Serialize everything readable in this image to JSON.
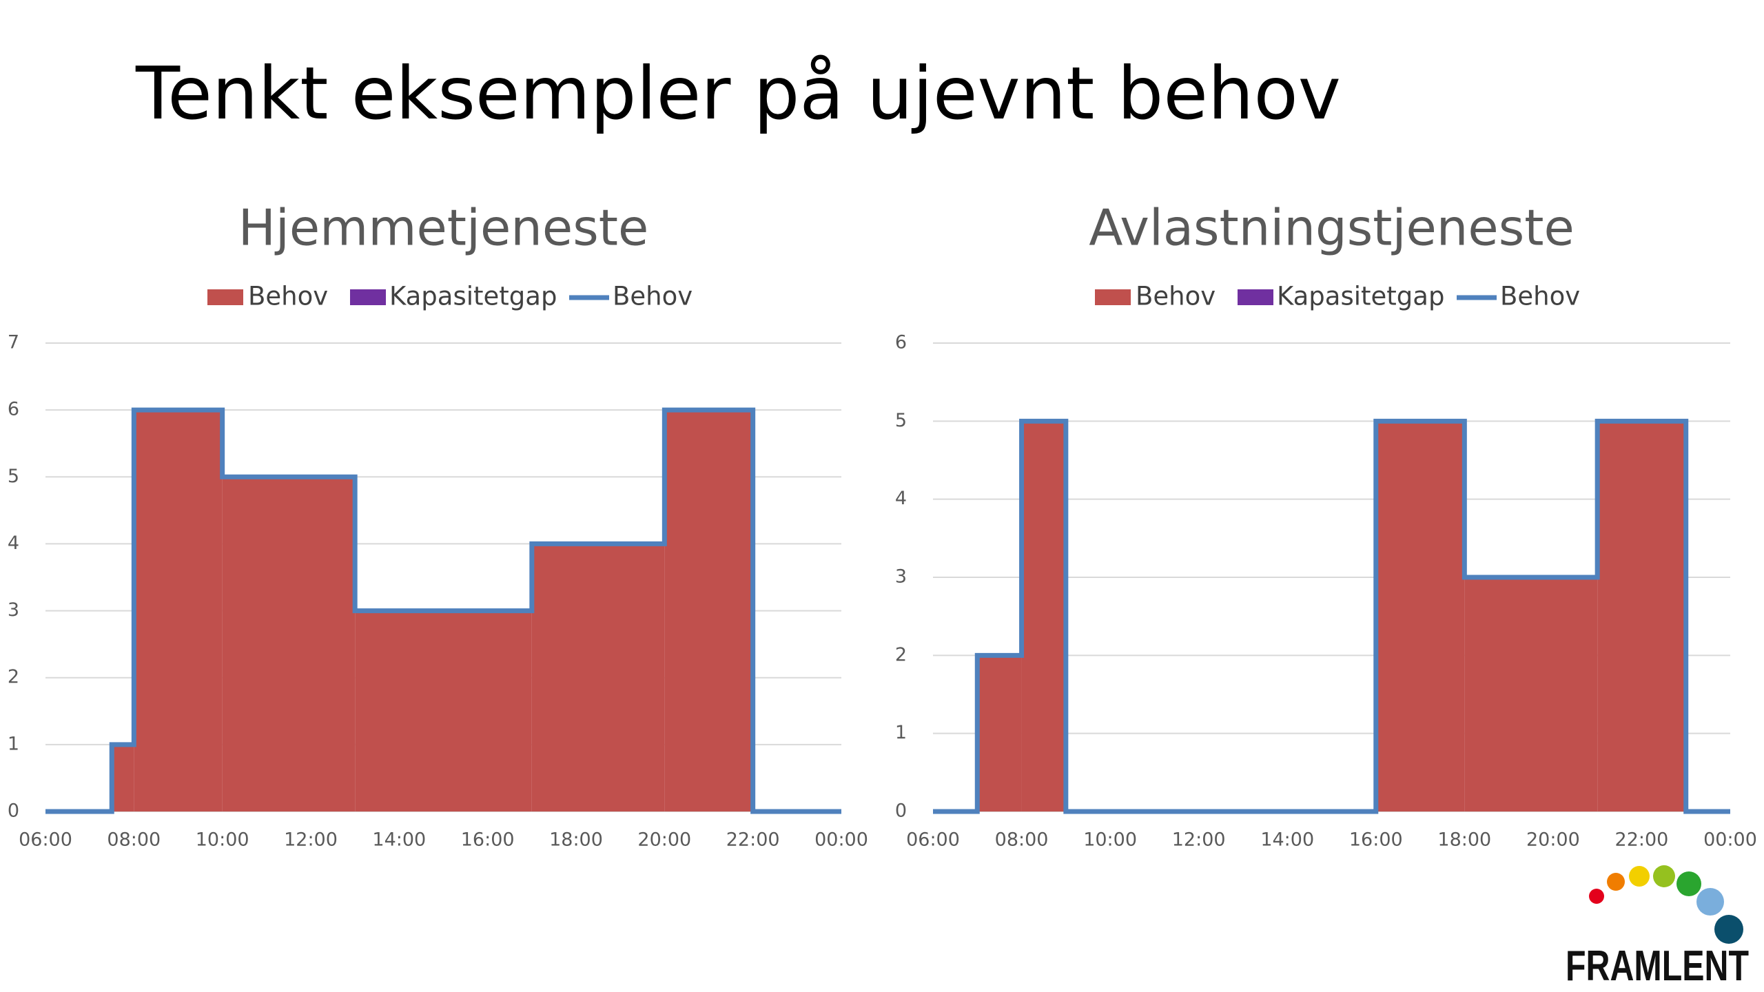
{
  "title": "Tenkt eksempler på ujevnt behov",
  "logo": "FRAMLENT",
  "chart_data": [
    {
      "type": "step-area",
      "title": "Hjemmetjeneste",
      "x": [
        6,
        7.5,
        8,
        10,
        13,
        17,
        20,
        22,
        24
      ],
      "series": [
        {
          "name": "Behov",
          "kind": "area",
          "color": "#c0504d",
          "values": [
            0,
            1,
            6,
            5,
            3,
            4,
            6,
            0,
            0
          ]
        },
        {
          "name": "Kapasitetgap",
          "kind": "area",
          "color": "#7030a0",
          "values": [
            0,
            0,
            0,
            0,
            0,
            0,
            0,
            0,
            0
          ]
        },
        {
          "name": "Behov",
          "kind": "line",
          "color": "#4f81bd",
          "values": [
            0,
            1,
            6,
            5,
            3,
            4,
            6,
            0,
            0
          ]
        }
      ],
      "xlim": [
        6,
        24
      ],
      "xticks": [
        {
          "value": 6,
          "label": "06:00"
        },
        {
          "value": 8,
          "label": "08:00"
        },
        {
          "value": 10,
          "label": "10:00"
        },
        {
          "value": 12,
          "label": "12:00"
        },
        {
          "value": 14,
          "label": "14:00"
        },
        {
          "value": 16,
          "label": "16:00"
        },
        {
          "value": 18,
          "label": "18:00"
        },
        {
          "value": 20,
          "label": "20:00"
        },
        {
          "value": 22,
          "label": "22:00"
        },
        {
          "value": 24,
          "label": "00:00"
        }
      ],
      "ylim": [
        0,
        7
      ],
      "yticks": [
        0,
        1,
        2,
        3,
        4,
        5,
        6,
        7
      ],
      "grid": true,
      "legend": "top"
    },
    {
      "type": "step-area",
      "title": "Avlastningstjeneste",
      "x": [
        6,
        7,
        8,
        9,
        16,
        18,
        21,
        23,
        24
      ],
      "series": [
        {
          "name": "Behov",
          "kind": "area",
          "color": "#c0504d",
          "values": [
            0,
            2,
            5,
            0,
            5,
            3,
            5,
            0,
            0
          ]
        },
        {
          "name": "Kapasitetgap",
          "kind": "area",
          "color": "#7030a0",
          "values": [
            0,
            0,
            0,
            0,
            0,
            0,
            0,
            0,
            0
          ]
        },
        {
          "name": "Behov",
          "kind": "line",
          "color": "#4f81bd",
          "values": [
            0,
            2,
            5,
            0,
            5,
            3,
            5,
            0,
            0
          ]
        }
      ],
      "xlim": [
        6,
        24
      ],
      "xticks": [
        {
          "value": 6,
          "label": "06:00"
        },
        {
          "value": 8,
          "label": "08:00"
        },
        {
          "value": 10,
          "label": "10:00"
        },
        {
          "value": 12,
          "label": "12:00"
        },
        {
          "value": 14,
          "label": "14:00"
        },
        {
          "value": 16,
          "label": "16:00"
        },
        {
          "value": 18,
          "label": "18:00"
        },
        {
          "value": 20,
          "label": "20:00"
        },
        {
          "value": 22,
          "label": "22:00"
        },
        {
          "value": 24,
          "label": "00:00"
        }
      ],
      "ylim": [
        0,
        6
      ],
      "yticks": [
        0,
        1,
        2,
        3,
        4,
        5,
        6
      ],
      "grid": true,
      "legend": "top"
    }
  ]
}
